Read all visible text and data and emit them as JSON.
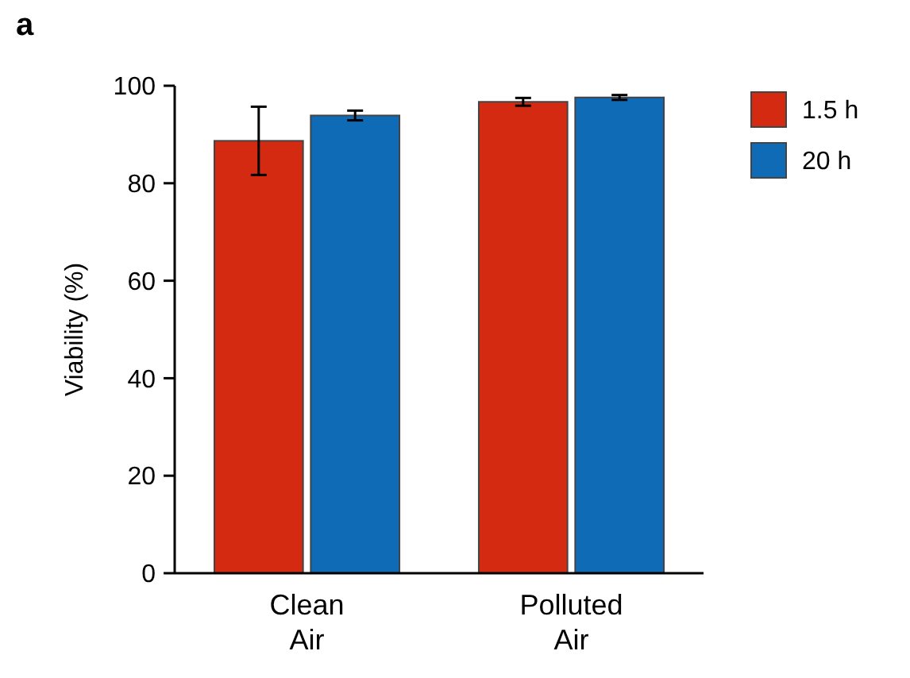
{
  "chart_data": {
    "type": "bar",
    "ylabel": "Viability (%)",
    "annotations": [
      "a"
    ],
    "categories": [
      "Clean\nAir",
      "Polluted\nAir"
    ],
    "series": [
      {
        "name": "1.5 h",
        "color": "#d42a12",
        "values": [
          88.7,
          96.7
        ],
        "errors": [
          7,
          0.8
        ]
      },
      {
        "name": "20 h",
        "color": "#0f6bb6",
        "values": [
          93.9,
          97.6
        ],
        "errors": [
          1,
          0.5
        ]
      }
    ],
    "ylim": [
      0,
      100
    ],
    "yticks": [
      0,
      20,
      40,
      60,
      80,
      100
    ],
    "legend": "top right"
  }
}
